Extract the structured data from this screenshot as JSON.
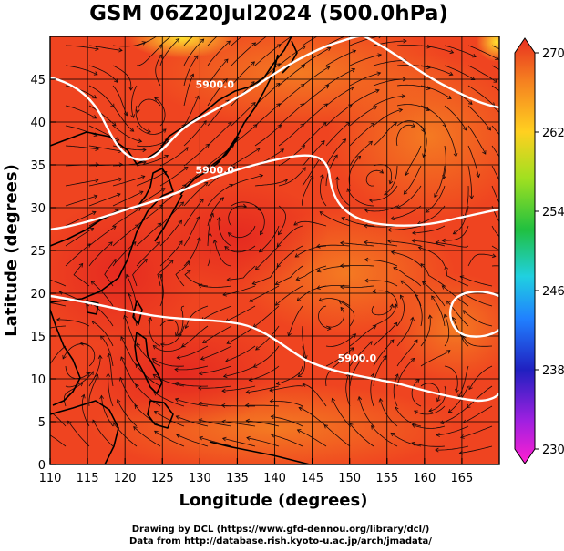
{
  "title": "GSM 06Z20Jul2024 (500.0hPa)",
  "xlabel": "Longitude (degrees)",
  "ylabel": "Latitude  (degrees)",
  "credits": {
    "line1": "Drawing by DCL (https://www.gfd-dennou.org/library/dcl/)",
    "line2": "Data from http://database.rish.kyoto-u.ac.jp/arch/jmadata/"
  },
  "chart_data": {
    "type": "heatmap",
    "description_field": "shaded temperature with streamlines and geopotential height contours",
    "xlim": [
      110,
      170
    ],
    "ylim": [
      0,
      50
    ],
    "x_ticks": [
      110,
      115,
      120,
      125,
      130,
      135,
      140,
      145,
      150,
      155,
      160,
      165
    ],
    "y_ticks": [
      0,
      5,
      10,
      15,
      20,
      25,
      30,
      35,
      40,
      45
    ],
    "grid": true,
    "colorbar": {
      "ticks": [
        230,
        238,
        246,
        254,
        262,
        270
      ],
      "range": [
        230,
        270
      ],
      "position": "right"
    },
    "contour_labels": [
      {
        "text": "5900.0",
        "lon": 132,
        "lat": 44
      },
      {
        "text": "5900.0",
        "lon": 132,
        "lat": 34
      },
      {
        "text": "5900.0",
        "lon": 151,
        "lat": 12
      }
    ],
    "colors": {
      "field_main": "#ef3d1e",
      "field_warm": "#f25a30",
      "field_orange": "#f5761c",
      "field_yellow": "#ffe020",
      "contour": "#ffffff",
      "coast": "#000000"
    }
  }
}
